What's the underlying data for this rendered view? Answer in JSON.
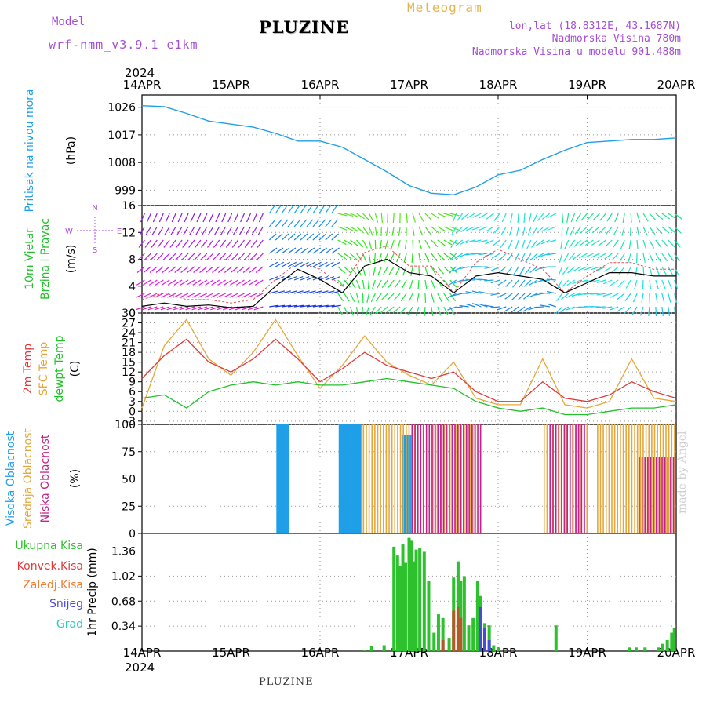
{
  "header": {
    "model_label": "Model",
    "model_name": "wrf-nmm_v3.9.1 e1km",
    "station": "PLUZINE",
    "chart_title": "Meteogram",
    "lonlat": "lon,lat (18.8312E, 43.1687N)",
    "elevation": "Nadmorska Visina 780m",
    "elevation_model": "Nadmorska Visina u modelu 901.488m"
  },
  "footer": {
    "station": "PLUZINE",
    "credit": "made by Angel"
  },
  "colors": {
    "pressure": "#1f9fe8",
    "temp_2m": "#e03a3a",
    "temp_sfc": "#e6a73a",
    "temp_dew": "#22c02a",
    "cloud_high": "#1f9fe8",
    "cloud_mid": "#e6a73a",
    "cloud_low": "#c0238c",
    "precip_total": "#2ec12e",
    "precip_conv": "#e03a3a",
    "precip_strat": "#f07a30",
    "precip_snow": "#4a4ad8",
    "precip_graupel": "#2cc9c9",
    "wind_label": "#22c02a",
    "violet": "#a64dd6"
  },
  "chart_data": [
    {
      "id": "pressure",
      "type": "line",
      "ylabel": "Pritisak na nivou mora",
      "unit": "(hPa)",
      "yticks": [
        999,
        1008,
        1017,
        1026
      ],
      "ylim": [
        994,
        1030
      ],
      "x_days": [
        0,
        0.25,
        0.5,
        0.75,
        1.0,
        1.25,
        1.5,
        1.75,
        2.0,
        2.25,
        2.5,
        2.75,
        3.0,
        3.25,
        3.5,
        3.75,
        4.0,
        4.25,
        4.5,
        4.75,
        5.0,
        5.25,
        5.5,
        5.75,
        6.0
      ],
      "series": [
        {
          "values": [
            1026.5,
            1026.2,
            1024.0,
            1021.5,
            1020.5,
            1019.5,
            1017.5,
            1015.0,
            1015.0,
            1013.0,
            1009.0,
            1005.0,
            1000.5,
            998.0,
            997.5,
            1000.0,
            1004.0,
            1005.5,
            1009.0,
            1012.0,
            1014.5,
            1015.0,
            1015.5,
            1015.5,
            1016.0
          ]
        }
      ]
    },
    {
      "id": "wind",
      "type": "line",
      "ylabel": "10m Vjetar",
      "ylabel2": "Brzina i Pravac",
      "unit": "(m/s)",
      "compass": {
        "n": "N",
        "e": "E",
        "w": "W",
        "s": "S"
      },
      "yticks": [
        0,
        4,
        8,
        12,
        16
      ],
      "ylim": [
        0,
        16
      ],
      "x_days": [
        0,
        0.25,
        0.5,
        0.75,
        1.0,
        1.25,
        1.5,
        1.75,
        2.0,
        2.25,
        2.5,
        2.75,
        3.0,
        3.25,
        3.5,
        3.75,
        4.0,
        4.25,
        4.5,
        4.75,
        5.0,
        5.25,
        5.5,
        5.75,
        6.0
      ],
      "series": [
        {
          "name": "speed",
          "values": [
            1.0,
            1.5,
            1.0,
            1.2,
            0.8,
            1.0,
            4.0,
            6.5,
            5.0,
            3.0,
            7.0,
            8.0,
            6.0,
            5.5,
            3.0,
            5.5,
            6.0,
            5.5,
            5.0,
            3.0,
            4.5,
            6.0,
            6.0,
            5.5,
            5.5
          ]
        },
        {
          "name": "gust",
          "values": [
            2.0,
            3.0,
            2.0,
            2.0,
            1.5,
            2.0,
            5.0,
            7.5,
            6.5,
            4.0,
            9.0,
            10.0,
            7.0,
            7.0,
            3.0,
            7.5,
            9.5,
            8.0,
            6.5,
            3.0,
            5.5,
            7.5,
            7.5,
            6.5,
            6.5
          ]
        }
      ]
    },
    {
      "id": "temperature",
      "type": "line",
      "ylabels": [
        "2m Temp",
        "SFC Temp",
        "dewpt Temp"
      ],
      "unit": "(C)",
      "yticks": [
        -3,
        0,
        3,
        6,
        9,
        12,
        15,
        18,
        21,
        24,
        27,
        30
      ],
      "ylim": [
        -4,
        30
      ],
      "x_days": [
        0,
        0.25,
        0.5,
        0.75,
        1.0,
        1.25,
        1.5,
        1.75,
        2.0,
        2.25,
        2.5,
        2.75,
        3.0,
        3.25,
        3.5,
        3.75,
        4.0,
        4.25,
        4.5,
        4.75,
        5.0,
        5.25,
        5.5,
        5.75,
        6.0
      ],
      "series": [
        {
          "name": "2m Temp",
          "values": [
            10,
            17,
            22,
            15,
            12,
            16,
            22,
            16,
            9,
            13,
            18,
            14,
            12,
            10,
            12,
            6,
            3,
            3,
            9,
            4,
            3,
            5,
            9,
            6,
            4
          ]
        },
        {
          "name": "SFC Temp",
          "values": [
            1,
            20,
            28,
            16,
            11,
            18,
            28,
            17,
            7,
            14,
            23,
            15,
            11,
            8,
            15,
            4,
            2,
            2,
            16,
            2,
            1,
            3,
            16,
            4,
            3
          ]
        },
        {
          "name": "dewpt Temp",
          "values": [
            4,
            5,
            1,
            6,
            8,
            9,
            8,
            9,
            8,
            8,
            9,
            10,
            9,
            8,
            7,
            3,
            1,
            0,
            1,
            -1,
            -1,
            0,
            1,
            1,
            2
          ]
        }
      ]
    },
    {
      "id": "clouds",
      "type": "bar",
      "ylabels": [
        "Visoka Oblacnost",
        "Srednja Oblacnost",
        "Niska Oblacnost"
      ],
      "unit": "(%)",
      "yticks": [
        0,
        25,
        50,
        75,
        100
      ],
      "ylim": [
        0,
        100
      ],
      "series": [
        {
          "name": "Visoka Oblacnost",
          "segments": [
            [
              1.52,
              1.66,
              100
            ],
            [
              2.22,
              2.47,
              100
            ],
            [
              2.93,
              3.05,
              90
            ]
          ]
        },
        {
          "name": "Srednja Oblacnost",
          "segments": [
            [
              2.47,
              3.15,
              100
            ],
            [
              3.25,
              3.75,
              100
            ],
            [
              4.5,
              5.0,
              100
            ],
            [
              5.1,
              5.98,
              100
            ]
          ]
        },
        {
          "name": "Niska Oblacnost",
          "segments": [
            [
              3.0,
              3.8,
              100
            ],
            [
              4.55,
              4.95,
              100
            ],
            [
              5.55,
              5.95,
              70
            ]
          ]
        }
      ]
    },
    {
      "id": "precip",
      "type": "bar",
      "ylabel": "1hr Precip (mm)",
      "ylabels": [
        "Ukupna Kisa",
        "Konvek.Kisa",
        "Zaledj.Kisa",
        "Snijeg",
        "Grad"
      ],
      "yticks": [
        0.34,
        0.68,
        1.02,
        1.36
      ],
      "ylim": [
        0,
        1.6
      ],
      "x_days": [
        2.5,
        2.58,
        2.72,
        2.83,
        2.87,
        2.9,
        2.93,
        2.96,
        3.0,
        3.03,
        3.05,
        3.08,
        3.12,
        3.17,
        3.22,
        3.28,
        3.33,
        3.38,
        3.45,
        3.5,
        3.55,
        3.58,
        3.62,
        3.67,
        3.72,
        3.77,
        3.8,
        3.85,
        3.9,
        3.95,
        4.0,
        4.65,
        5.48,
        5.55,
        5.65,
        5.8,
        5.85,
        5.9,
        5.95,
        5.98
      ],
      "series": [
        {
          "name": "Ukupna Kisa",
          "values": [
            0.02,
            0.07,
            0.08,
            1.42,
            1.3,
            1.16,
            1.45,
            1.2,
            1.54,
            1.5,
            1.22,
            1.38,
            1.4,
            1.35,
            0.95,
            0.25,
            0.5,
            0.45,
            0.18,
            1.0,
            1.22,
            0.95,
            1.02,
            0.35,
            0.45,
            0.95,
            0.75,
            0.38,
            0.35,
            0.08,
            0.05,
            0.35,
            0.05,
            0.05,
            0.05,
            0.05,
            0.1,
            0.15,
            0.25,
            0.32
          ]
        },
        {
          "name": "Konvek.Kisa",
          "values": [
            0,
            0,
            0,
            0,
            0,
            0,
            0,
            0,
            0,
            0,
            0,
            0,
            0,
            0,
            0,
            0,
            0,
            0.15,
            0,
            0.55,
            0.6,
            0.45,
            0,
            0,
            0,
            0,
            0,
            0,
            0,
            0,
            0,
            0,
            0,
            0,
            0,
            0,
            0,
            0,
            0,
            0
          ]
        },
        {
          "name": "Snijeg",
          "values": [
            0,
            0,
            0,
            0,
            0,
            0,
            0,
            0,
            0,
            0,
            0,
            0,
            0,
            0,
            0,
            0,
            0,
            0,
            0,
            0,
            0,
            0,
            0,
            0,
            0,
            0,
            0.6,
            0.32,
            0.15,
            0,
            0,
            0,
            0,
            0,
            0,
            0,
            0,
            0,
            0,
            0
          ]
        }
      ]
    }
  ],
  "time_axis": {
    "year": "2024",
    "labels": [
      "14APR",
      "15APR",
      "16APR",
      "17APR",
      "18APR",
      "19APR",
      "20APR"
    ]
  }
}
